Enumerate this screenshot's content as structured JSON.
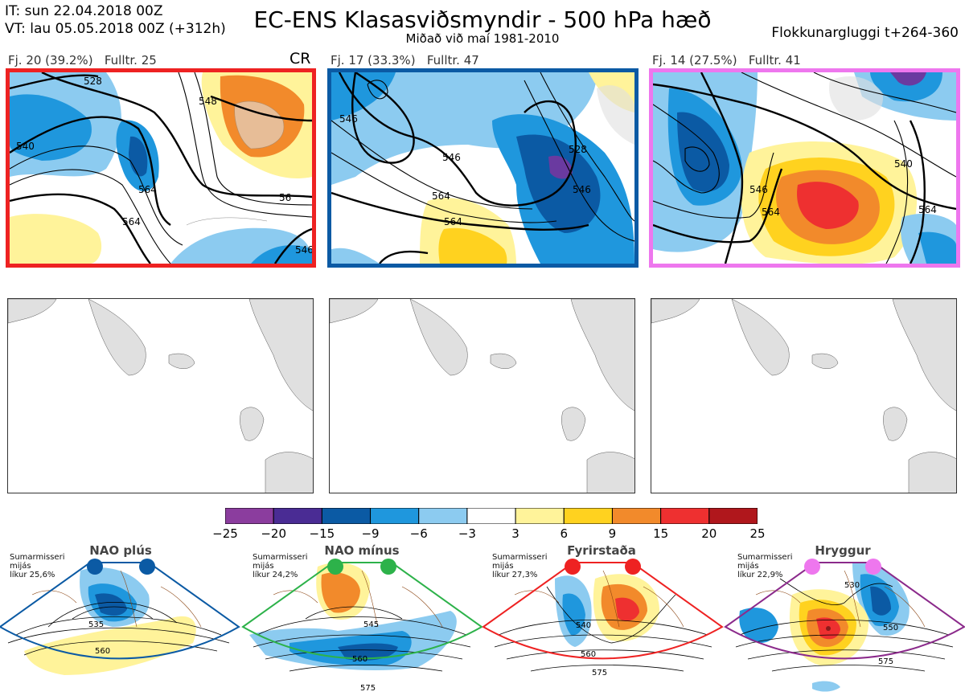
{
  "header": {
    "it_line": "IT: sun 22.04.2018 00Z",
    "vt_line": "VT: lau 05.05.2018 00Z  (+312h)",
    "title": "EC-ENS Klasasviðsmyndir - 500 hPa hæð",
    "subtitle": "Miðað við maí 1981-2010",
    "window": "Flokkunargluggi t+264-360"
  },
  "clusters": [
    {
      "label": "Fj. 20 (39.2%)",
      "rep": "Fulltr. 25",
      "border_color": "#ee2222",
      "tag": "CR",
      "contours": [
        "540",
        "528",
        "548",
        "564",
        "56",
        "546"
      ]
    },
    {
      "label": "Fj. 17 (33.3%)",
      "rep": "Fulltr. 47",
      "border_color": "#0b5aa4",
      "contours": [
        "546",
        "546",
        "564",
        "528",
        "546"
      ]
    },
    {
      "label": "Fj. 14 (27.5%)",
      "rep": "Fulltr. 41",
      "border_color": "#ee77ee",
      "contours": [
        "540",
        "564",
        "546",
        "564"
      ]
    }
  ],
  "colorbar": {
    "ticks": [
      "−25",
      "−20",
      "−15",
      "−9",
      "−6",
      "−3",
      "3",
      "6",
      "9",
      "15",
      "20",
      "25"
    ],
    "colors": [
      "#8b3d9e",
      "#4a2c94",
      "#0b5aa4",
      "#1f97dd",
      "#8ccbf0",
      "#ffffff",
      "#fff39a",
      "#ffd21f",
      "#f28a2b",
      "#ee3030",
      "#b0171c"
    ]
  },
  "regimes": [
    {
      "name": "NAO plús",
      "line1": "Sumarmisseri",
      "line2": "mijás",
      "line3": "líkur 25,6%",
      "border_color": "#0b5aa4",
      "dot_color": "#0b5aa4",
      "contours": [
        "535",
        "560"
      ]
    },
    {
      "name": "NAO mínus",
      "line1": "Sumarmisseri",
      "line2": "mijás",
      "line3": "líkur 24,2%",
      "border_color": "#2db24a",
      "dot_color": "#2db24a",
      "contours": [
        "545",
        "560",
        "575"
      ]
    },
    {
      "name": "Fyrirstaða",
      "line1": "Sumarmisseri",
      "line2": "mijás",
      "line3": "líkur 27,3%",
      "border_color": "#ee2222",
      "dot_color": "#ee2222",
      "contours": [
        "540",
        "560",
        "575"
      ]
    },
    {
      "name": "Hryggur",
      "line1": "Sumarmisseri",
      "line2": "mijás",
      "line3": "líkur 22,9%",
      "border_color": "#8b2a8b",
      "dot_color": "#ee77ee",
      "contours": [
        "530",
        "550",
        "575"
      ]
    }
  ]
}
